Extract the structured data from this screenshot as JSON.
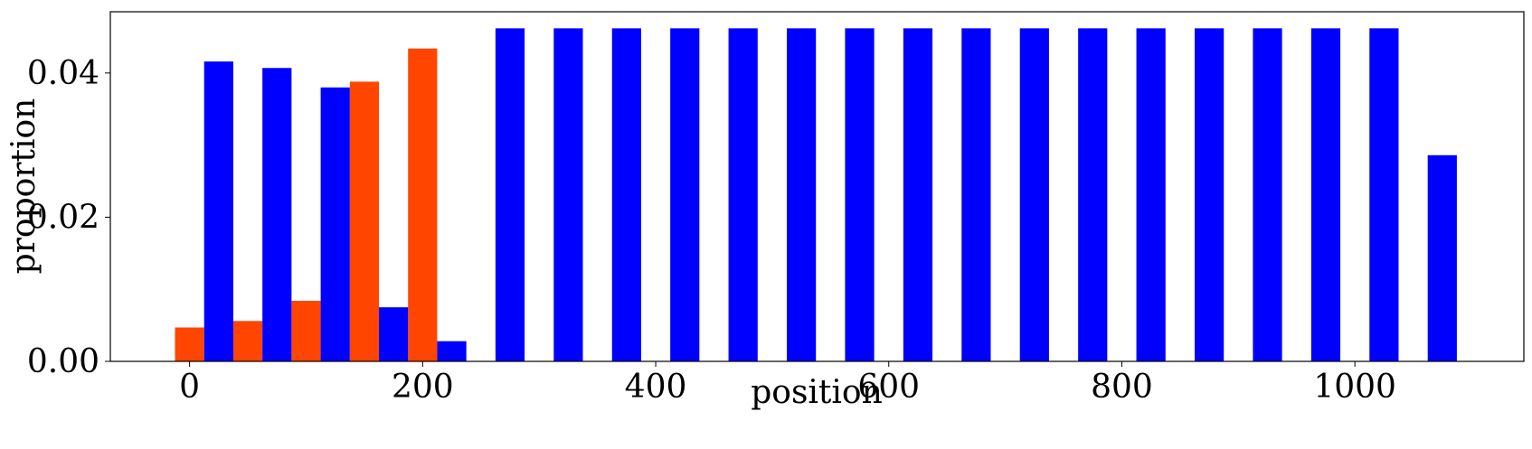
{
  "chart_data": {
    "type": "bar",
    "xlabel": "position",
    "ylabel": "proportion",
    "xlim": [
      -68,
      1145
    ],
    "ylim": [
      0,
      0.0485
    ],
    "xticks": [
      0,
      200,
      400,
      600,
      800,
      1000
    ],
    "xtick_labels": [
      "0",
      "200",
      "400",
      "600",
      "800",
      "1000"
    ],
    "yticks": [
      0,
      0.02,
      0.04
    ],
    "ytick_labels": [
      "0.00",
      "0.02",
      "0.04"
    ],
    "bar_width": 25,
    "grid": false,
    "legend": "none",
    "series": [
      {
        "color": "#ff4500",
        "x": [
          0,
          50,
          100,
          150,
          200
        ],
        "values": [
          0.0047,
          0.0056,
          0.0084,
          0.0388,
          0.0434
        ]
      },
      {
        "color": "#0000ff",
        "x": [
          25,
          75,
          125,
          175,
          225,
          275,
          325,
          375,
          425,
          475,
          525,
          575,
          625,
          675,
          725,
          775,
          825,
          875,
          925,
          975,
          1025,
          1075
        ],
        "values": [
          0.0416,
          0.0407,
          0.038,
          0.0075,
          0.0028,
          0.0462,
          0.0462,
          0.0462,
          0.0462,
          0.0462,
          0.0462,
          0.0462,
          0.0462,
          0.0462,
          0.0462,
          0.0462,
          0.0462,
          0.0462,
          0.0462,
          0.0462,
          0.0462,
          0.0286
        ]
      }
    ]
  }
}
